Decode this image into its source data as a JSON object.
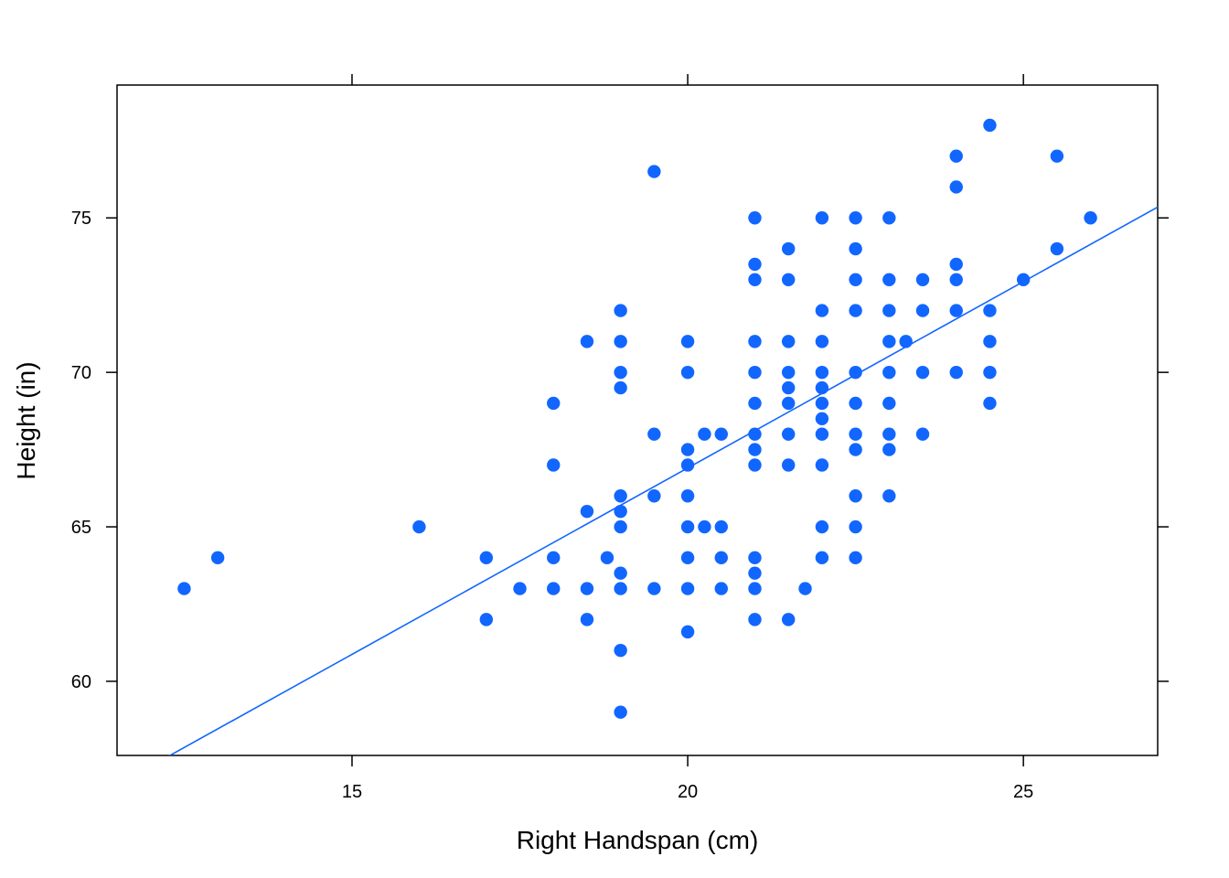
{
  "chart_data": {
    "type": "scatter",
    "title": "",
    "xlabel": "Right Handspan (cm)",
    "ylabel": "Height (in)",
    "xlim": [
      11.5,
      27
    ],
    "ylim": [
      57.6,
      79.3
    ],
    "x_ticks": [
      15,
      20,
      25
    ],
    "y_ticks": [
      60,
      65,
      70,
      75
    ],
    "x_tick_labels": [
      "15",
      "20",
      "25"
    ],
    "y_tick_labels": [
      "60",
      "65",
      "70",
      "75"
    ],
    "grid": false,
    "ticks_on_all_sides": true,
    "colors": {
      "points": "#1166ff",
      "line": "#1166ff",
      "axes": "#000000"
    },
    "regression_line": {
      "x": [
        11.5,
        27
      ],
      "y": [
        56.65,
        75.35
      ]
    },
    "points": [
      {
        "x": 12.5,
        "y": 63
      },
      {
        "x": 13,
        "y": 64
      },
      {
        "x": 16,
        "y": 65
      },
      {
        "x": 17,
        "y": 64
      },
      {
        "x": 17,
        "y": 62
      },
      {
        "x": 17.5,
        "y": 63
      },
      {
        "x": 18,
        "y": 69
      },
      {
        "x": 18,
        "y": 67
      },
      {
        "x": 18,
        "y": 64
      },
      {
        "x": 18,
        "y": 63
      },
      {
        "x": 18.5,
        "y": 71
      },
      {
        "x": 18.5,
        "y": 65.5
      },
      {
        "x": 18.5,
        "y": 63
      },
      {
        "x": 18.5,
        "y": 62
      },
      {
        "x": 18.8,
        "y": 64
      },
      {
        "x": 19,
        "y": 72
      },
      {
        "x": 19,
        "y": 71
      },
      {
        "x": 19,
        "y": 70
      },
      {
        "x": 19,
        "y": 69.5
      },
      {
        "x": 19,
        "y": 66
      },
      {
        "x": 19,
        "y": 65.5
      },
      {
        "x": 19,
        "y": 65
      },
      {
        "x": 19,
        "y": 63.5
      },
      {
        "x": 19,
        "y": 63
      },
      {
        "x": 19,
        "y": 61
      },
      {
        "x": 19,
        "y": 59
      },
      {
        "x": 19.5,
        "y": 76.5
      },
      {
        "x": 19.5,
        "y": 68
      },
      {
        "x": 19.5,
        "y": 66
      },
      {
        "x": 19.5,
        "y": 63
      },
      {
        "x": 20,
        "y": 71
      },
      {
        "x": 20,
        "y": 70
      },
      {
        "x": 20,
        "y": 67.5
      },
      {
        "x": 20,
        "y": 67
      },
      {
        "x": 20,
        "y": 66
      },
      {
        "x": 20,
        "y": 65
      },
      {
        "x": 20,
        "y": 64
      },
      {
        "x": 20,
        "y": 63
      },
      {
        "x": 20,
        "y": 61.6
      },
      {
        "x": 20.25,
        "y": 68
      },
      {
        "x": 20.25,
        "y": 65
      },
      {
        "x": 20.5,
        "y": 68
      },
      {
        "x": 20.5,
        "y": 65
      },
      {
        "x": 20.5,
        "y": 64
      },
      {
        "x": 20.5,
        "y": 63
      },
      {
        "x": 21,
        "y": 75
      },
      {
        "x": 21,
        "y": 73.5
      },
      {
        "x": 21,
        "y": 73
      },
      {
        "x": 21,
        "y": 71
      },
      {
        "x": 21,
        "y": 70
      },
      {
        "x": 21,
        "y": 69
      },
      {
        "x": 21,
        "y": 68
      },
      {
        "x": 21,
        "y": 67.5
      },
      {
        "x": 21,
        "y": 67
      },
      {
        "x": 21,
        "y": 64
      },
      {
        "x": 21,
        "y": 63.5
      },
      {
        "x": 21,
        "y": 63
      },
      {
        "x": 21,
        "y": 62
      },
      {
        "x": 21.5,
        "y": 74
      },
      {
        "x": 21.5,
        "y": 73
      },
      {
        "x": 21.5,
        "y": 71
      },
      {
        "x": 21.5,
        "y": 70
      },
      {
        "x": 21.5,
        "y": 69.5
      },
      {
        "x": 21.5,
        "y": 69
      },
      {
        "x": 21.5,
        "y": 68
      },
      {
        "x": 21.5,
        "y": 67
      },
      {
        "x": 21.5,
        "y": 62
      },
      {
        "x": 21.75,
        "y": 63
      },
      {
        "x": 22,
        "y": 75
      },
      {
        "x": 22,
        "y": 72
      },
      {
        "x": 22,
        "y": 71
      },
      {
        "x": 22,
        "y": 70
      },
      {
        "x": 22,
        "y": 69.5
      },
      {
        "x": 22,
        "y": 69
      },
      {
        "x": 22,
        "y": 68.5
      },
      {
        "x": 22,
        "y": 68
      },
      {
        "x": 22,
        "y": 67
      },
      {
        "x": 22,
        "y": 65
      },
      {
        "x": 22,
        "y": 64
      },
      {
        "x": 22.5,
        "y": 75
      },
      {
        "x": 22.5,
        "y": 74
      },
      {
        "x": 22.5,
        "y": 73
      },
      {
        "x": 22.5,
        "y": 72
      },
      {
        "x": 22.5,
        "y": 70
      },
      {
        "x": 22.5,
        "y": 69
      },
      {
        "x": 22.5,
        "y": 68
      },
      {
        "x": 22.5,
        "y": 67.5
      },
      {
        "x": 22.5,
        "y": 66
      },
      {
        "x": 22.5,
        "y": 65
      },
      {
        "x": 22.5,
        "y": 64
      },
      {
        "x": 23,
        "y": 75
      },
      {
        "x": 23,
        "y": 73
      },
      {
        "x": 23,
        "y": 72
      },
      {
        "x": 23,
        "y": 71
      },
      {
        "x": 23,
        "y": 70
      },
      {
        "x": 23,
        "y": 69
      },
      {
        "x": 23,
        "y": 68
      },
      {
        "x": 23,
        "y": 67.5
      },
      {
        "x": 23,
        "y": 66
      },
      {
        "x": 23.25,
        "y": 71
      },
      {
        "x": 23.5,
        "y": 73
      },
      {
        "x": 23.5,
        "y": 72
      },
      {
        "x": 23.5,
        "y": 70
      },
      {
        "x": 23.5,
        "y": 68
      },
      {
        "x": 24,
        "y": 77
      },
      {
        "x": 24,
        "y": 76
      },
      {
        "x": 24,
        "y": 73.5
      },
      {
        "x": 24,
        "y": 73
      },
      {
        "x": 24,
        "y": 72
      },
      {
        "x": 24,
        "y": 70
      },
      {
        "x": 24.5,
        "y": 78
      },
      {
        "x": 24.5,
        "y": 72
      },
      {
        "x": 24.5,
        "y": 71
      },
      {
        "x": 24.5,
        "y": 70
      },
      {
        "x": 24.5,
        "y": 69
      },
      {
        "x": 25,
        "y": 73
      },
      {
        "x": 25.5,
        "y": 77
      },
      {
        "x": 25.5,
        "y": 74
      },
      {
        "x": 26,
        "y": 75
      }
    ]
  }
}
